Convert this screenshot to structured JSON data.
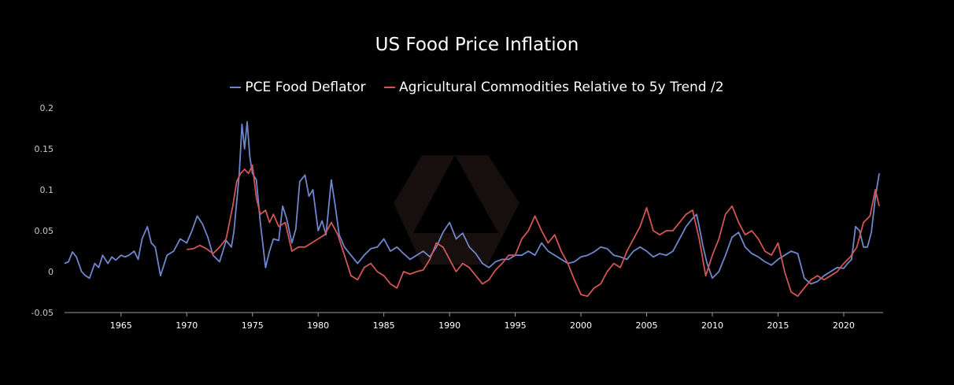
{
  "chart_data": {
    "type": "line",
    "title": "US Food Price Inflation",
    "xlabel": "",
    "ylabel": "",
    "xlim": [
      1960.7,
      2023.0
    ],
    "ylim": [
      -0.05,
      0.2
    ],
    "y_ticks": [
      -0.05,
      0,
      0.05,
      0.1,
      0.15,
      0.2
    ],
    "y_tick_labels": [
      "-0.05",
      "0",
      "0.05",
      "0.1",
      "0.15",
      "0.2"
    ],
    "x_ticks": [
      1965,
      1970,
      1975,
      1980,
      1985,
      1990,
      1995,
      2000,
      2005,
      2010,
      2015,
      2020
    ],
    "x_tick_labels": [
      "1965",
      "1970",
      "1975",
      "1980",
      "1985",
      "1990",
      "1995",
      "2000",
      "2005",
      "2010",
      "2015",
      "2020"
    ],
    "grid": false,
    "legend_position": "top-center",
    "series": [
      {
        "name": "PCE Food Deflator",
        "color": "#6f86cc",
        "x": [
          1960.7,
          1961.0,
          1961.3,
          1961.6,
          1962.0,
          1962.3,
          1962.6,
          1963.0,
          1963.3,
          1963.6,
          1964.0,
          1964.3,
          1964.6,
          1965.0,
          1965.3,
          1965.6,
          1966.0,
          1966.3,
          1966.6,
          1967.0,
          1967.3,
          1967.6,
          1968.0,
          1968.5,
          1969.0,
          1969.5,
          1970.0,
          1970.4,
          1970.8,
          1971.2,
          1971.6,
          1972.0,
          1972.5,
          1973.0,
          1973.4,
          1973.6,
          1973.8,
          1974.0,
          1974.2,
          1974.4,
          1974.6,
          1974.8,
          1975.0,
          1975.3,
          1975.6,
          1976.0,
          1976.3,
          1976.6,
          1977.0,
          1977.3,
          1977.6,
          1978.0,
          1978.3,
          1978.6,
          1979.0,
          1979.3,
          1979.6,
          1980.0,
          1980.3,
          1980.6,
          1981.0,
          1981.3,
          1981.6,
          1982.0,
          1982.5,
          1983.0,
          1983.5,
          1984.0,
          1984.5,
          1985.0,
          1985.5,
          1986.0,
          1986.5,
          1987.0,
          1987.5,
          1988.0,
          1988.5,
          1989.0,
          1989.5,
          1990.0,
          1990.5,
          1991.0,
          1991.5,
          1992.0,
          1992.5,
          1993.0,
          1993.5,
          1994.0,
          1994.5,
          1995.0,
          1995.5,
          1996.0,
          1996.5,
          1997.0,
          1997.5,
          1998.0,
          1998.5,
          1999.0,
          1999.5,
          2000.0,
          2000.5,
          2001.0,
          2001.5,
          2002.0,
          2002.5,
          2003.0,
          2003.5,
          2004.0,
          2004.5,
          2005.0,
          2005.5,
          2006.0,
          2006.5,
          2007.0,
          2007.5,
          2008.0,
          2008.5,
          2008.8,
          2009.0,
          2009.3,
          2009.6,
          2010.0,
          2010.5,
          2011.0,
          2011.5,
          2012.0,
          2012.5,
          2013.0,
          2013.5,
          2014.0,
          2014.5,
          2015.0,
          2015.5,
          2016.0,
          2016.5,
          2017.0,
          2017.5,
          2018.0,
          2018.5,
          2019.0,
          2019.5,
          2020.0,
          2020.3,
          2020.6,
          2020.9,
          2021.2,
          2021.5,
          2021.8,
          2022.1,
          2022.4,
          2022.7
        ],
        "values": [
          0.01,
          0.012,
          0.024,
          0.018,
          0.0,
          -0.005,
          -0.008,
          0.01,
          0.005,
          0.02,
          0.01,
          0.018,
          0.014,
          0.02,
          0.018,
          0.02,
          0.025,
          0.015,
          0.04,
          0.055,
          0.035,
          0.03,
          -0.005,
          0.02,
          0.025,
          0.04,
          0.035,
          0.05,
          0.068,
          0.058,
          0.042,
          0.02,
          0.012,
          0.038,
          0.03,
          0.05,
          0.085,
          0.12,
          0.18,
          0.15,
          0.183,
          0.14,
          0.12,
          0.112,
          0.06,
          0.005,
          0.025,
          0.04,
          0.038,
          0.08,
          0.065,
          0.035,
          0.052,
          0.11,
          0.118,
          0.092,
          0.1,
          0.05,
          0.062,
          0.045,
          0.112,
          0.08,
          0.045,
          0.03,
          0.02,
          0.01,
          0.02,
          0.028,
          0.03,
          0.04,
          0.025,
          0.03,
          0.022,
          0.015,
          0.02,
          0.025,
          0.018,
          0.03,
          0.048,
          0.06,
          0.04,
          0.047,
          0.03,
          0.022,
          0.01,
          0.005,
          0.012,
          0.015,
          0.015,
          0.02,
          0.02,
          0.025,
          0.02,
          0.035,
          0.025,
          0.02,
          0.015,
          0.01,
          0.012,
          0.018,
          0.02,
          0.024,
          0.03,
          0.028,
          0.02,
          0.018,
          0.015,
          0.025,
          0.03,
          0.025,
          0.018,
          0.022,
          0.02,
          0.025,
          0.04,
          0.055,
          0.065,
          0.07,
          0.055,
          0.03,
          0.01,
          -0.008,
          0.0,
          0.02,
          0.042,
          0.048,
          0.03,
          0.022,
          0.018,
          0.012,
          0.008,
          0.015,
          0.02,
          0.025,
          0.022,
          -0.008,
          -0.015,
          -0.012,
          -0.005,
          0.0,
          0.005,
          0.004,
          0.01,
          0.015,
          0.055,
          0.05,
          0.03,
          0.03,
          0.048,
          0.09,
          0.12
        ]
      },
      {
        "name": "Agricultural Commodities Relative to 5y Trend /2",
        "color": "#d05555",
        "x": [
          1970.0,
          1970.5,
          1971.0,
          1971.5,
          1972.0,
          1972.5,
          1973.0,
          1973.5,
          1973.8,
          1974.1,
          1974.4,
          1974.7,
          1975.0,
          1975.3,
          1975.6,
          1976.0,
          1976.3,
          1976.6,
          1977.0,
          1977.5,
          1978.0,
          1978.5,
          1979.0,
          1979.5,
          1980.0,
          1980.5,
          1981.0,
          1981.5,
          1982.0,
          1982.5,
          1983.0,
          1983.5,
          1984.0,
          1984.5,
          1985.0,
          1985.5,
          1986.0,
          1986.5,
          1987.0,
          1987.5,
          1988.0,
          1988.5,
          1989.0,
          1989.5,
          1990.0,
          1990.5,
          1991.0,
          1991.5,
          1992.0,
          1992.5,
          1993.0,
          1993.5,
          1994.0,
          1994.5,
          1995.0,
          1995.5,
          1996.0,
          1996.5,
          1997.0,
          1997.5,
          1998.0,
          1998.5,
          1999.0,
          1999.5,
          2000.0,
          2000.5,
          2001.0,
          2001.5,
          2002.0,
          2002.5,
          2003.0,
          2003.5,
          2004.0,
          2004.5,
          2005.0,
          2005.5,
          2006.0,
          2006.5,
          2007.0,
          2007.5,
          2008.0,
          2008.5,
          2009.0,
          2009.5,
          2010.0,
          2010.5,
          2011.0,
          2011.5,
          2012.0,
          2012.5,
          2013.0,
          2013.5,
          2014.0,
          2014.5,
          2015.0,
          2015.5,
          2016.0,
          2016.5,
          2017.0,
          2017.5,
          2018.0,
          2018.5,
          2019.0,
          2019.5,
          2020.0,
          2020.5,
          2021.0,
          2021.5,
          2022.0,
          2022.4,
          2022.7
        ],
        "values": [
          0.027,
          0.028,
          0.032,
          0.028,
          0.022,
          0.03,
          0.04,
          0.08,
          0.11,
          0.12,
          0.125,
          0.12,
          0.13,
          0.09,
          0.07,
          0.075,
          0.06,
          0.07,
          0.055,
          0.06,
          0.025,
          0.03,
          0.03,
          0.035,
          0.04,
          0.045,
          0.06,
          0.045,
          0.02,
          -0.005,
          -0.01,
          0.005,
          0.01,
          0.0,
          -0.005,
          -0.015,
          -0.02,
          0.0,
          -0.003,
          0.0,
          0.002,
          0.015,
          0.035,
          0.03,
          0.015,
          0.0,
          0.01,
          0.005,
          -0.005,
          -0.015,
          -0.01,
          0.002,
          0.01,
          0.02,
          0.02,
          0.04,
          0.05,
          0.068,
          0.05,
          0.035,
          0.045,
          0.025,
          0.01,
          -0.01,
          -0.028,
          -0.03,
          -0.02,
          -0.015,
          0.0,
          0.01,
          0.005,
          0.025,
          0.04,
          0.055,
          0.078,
          0.05,
          0.045,
          0.05,
          0.05,
          0.06,
          0.07,
          0.075,
          0.04,
          -0.005,
          0.02,
          0.04,
          0.07,
          0.08,
          0.06,
          0.045,
          0.05,
          0.04,
          0.025,
          0.02,
          0.035,
          0.0,
          -0.025,
          -0.03,
          -0.02,
          -0.01,
          -0.005,
          -0.01,
          -0.005,
          0.0,
          0.01,
          0.018,
          0.03,
          0.06,
          0.068,
          0.1,
          0.08
        ]
      }
    ]
  }
}
